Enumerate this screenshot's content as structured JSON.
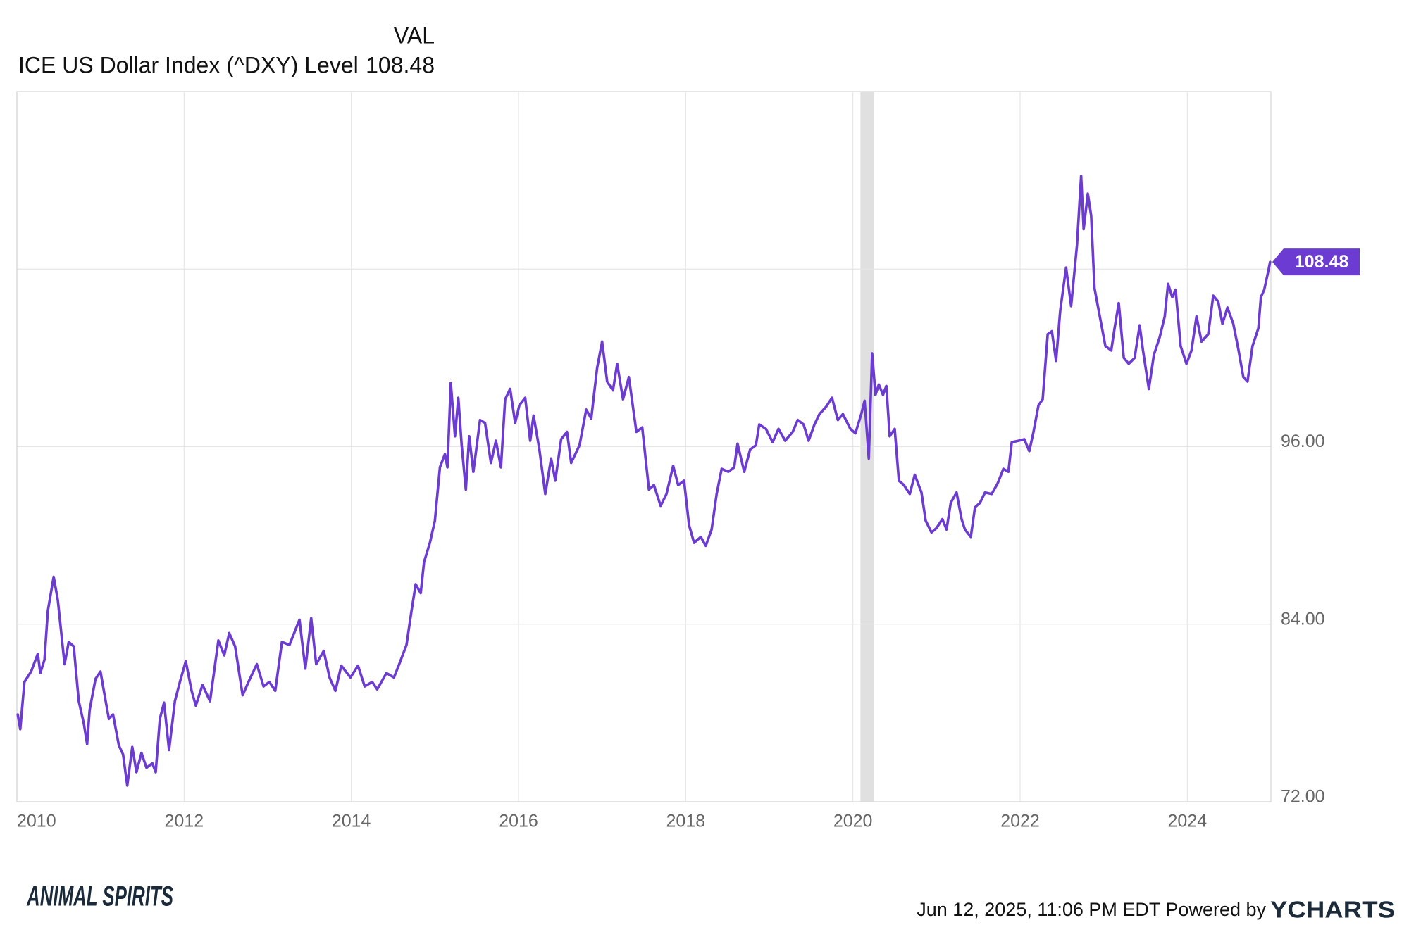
{
  "chart_data": {
    "type": "line",
    "value_header": "VAL",
    "footer": "Jun 12, 2025, 11:06 PM EDT Powered by",
    "brand": "YCHARTS",
    "watermark": "ANIMAL SPIRITS",
    "xlim": [
      2010,
      2025
    ],
    "xticks": [
      2010,
      2012,
      2014,
      2016,
      2018,
      2020,
      2022,
      2024
    ],
    "ylim": [
      72,
      120
    ],
    "yticks": [
      {
        "value": 72,
        "label": "72.00"
      },
      {
        "value": 84,
        "label": "84.00"
      },
      {
        "value": 96,
        "label": "96.00"
      }
    ],
    "ygrid": [
      72,
      84,
      96,
      108
    ],
    "grid": true,
    "recession": [
      [
        2020.09,
        2020.25
      ]
    ],
    "x": [
      2010.01,
      2010.04,
      2010.09,
      2010.17,
      2010.25,
      2010.28,
      2010.33,
      2010.37,
      2010.44,
      2010.49,
      2010.57,
      2010.62,
      2010.68,
      2010.74,
      2010.8,
      2010.84,
      2010.87,
      2010.94,
      2011.0,
      2011.04,
      2011.1,
      2011.15,
      2011.22,
      2011.27,
      2011.32,
      2011.38,
      2011.43,
      2011.49,
      2011.55,
      2011.62,
      2011.66,
      2011.71,
      2011.76,
      2011.82,
      2011.89,
      2011.95,
      2012.02,
      2012.09,
      2012.14,
      2012.22,
      2012.31,
      2012.41,
      2012.48,
      2012.54,
      2012.61,
      2012.7,
      2012.77,
      2012.87,
      2012.95,
      2013.02,
      2013.09,
      2013.17,
      2013.26,
      2013.38,
      2013.45,
      2013.52,
      2013.58,
      2013.67,
      2013.74,
      2013.81,
      2013.88,
      2013.99,
      2014.08,
      2014.16,
      2014.25,
      2014.31,
      2014.42,
      2014.51,
      2014.58,
      2014.66,
      2014.72,
      2014.77,
      2014.83,
      2014.87,
      2014.94,
      2015.0,
      2015.06,
      2015.12,
      2015.15,
      2015.19,
      2015.24,
      2015.28,
      2015.32,
      2015.37,
      2015.41,
      2015.46,
      2015.54,
      2015.6,
      2015.67,
      2015.73,
      2015.79,
      2015.84,
      2015.9,
      2015.96,
      2016.01,
      2016.08,
      2016.14,
      2016.18,
      2016.25,
      2016.32,
      2016.39,
      2016.44,
      2016.51,
      2016.58,
      2016.63,
      2016.73,
      2016.81,
      2016.87,
      2016.94,
      2017.0,
      2017.06,
      2017.13,
      2017.18,
      2017.25,
      2017.32,
      2017.41,
      2017.48,
      2017.56,
      2017.62,
      2017.7,
      2017.77,
      2017.85,
      2017.91,
      2017.98,
      2018.04,
      2018.1,
      2018.18,
      2018.24,
      2018.31,
      2018.37,
      2018.43,
      2018.51,
      2018.58,
      2018.62,
      2018.7,
      2018.77,
      2018.84,
      2018.88,
      2018.96,
      2019.04,
      2019.11,
      2019.19,
      2019.28,
      2019.34,
      2019.41,
      2019.47,
      2019.54,
      2019.6,
      2019.68,
      2019.75,
      2019.82,
      2019.88,
      2019.97,
      2020.03,
      2020.1,
      2020.14,
      2020.19,
      2020.23,
      2020.27,
      2020.31,
      2020.36,
      2020.4,
      2020.44,
      2020.5,
      2020.55,
      2020.61,
      2020.68,
      2020.74,
      2020.82,
      2020.87,
      2020.94,
      2021.0,
      2021.07,
      2021.12,
      2021.17,
      2021.24,
      2021.3,
      2021.34,
      2021.41,
      2021.46,
      2021.52,
      2021.58,
      2021.66,
      2021.73,
      2021.8,
      2021.86,
      2021.9,
      2021.98,
      2022.05,
      2022.11,
      2022.16,
      2022.22,
      2022.27,
      2022.33,
      2022.38,
      2022.43,
      2022.48,
      2022.55,
      2022.61,
      2022.68,
      2022.73,
      2022.76,
      2022.81,
      2022.85,
      2022.89,
      2022.96,
      2023.02,
      2023.09,
      2023.13,
      2023.18,
      2023.24,
      2023.3,
      2023.37,
      2023.43,
      2023.47,
      2023.54,
      2023.6,
      2023.67,
      2023.73,
      2023.77,
      2023.82,
      2023.86,
      2023.92,
      2023.99,
      2024.05,
      2024.11,
      2024.17,
      2024.25,
      2024.31,
      2024.37,
      2024.42,
      2024.48,
      2024.55,
      2024.61,
      2024.67,
      2024.72,
      2024.78,
      2024.85,
      2024.88,
      2024.92,
      2024.97,
      2024.99
    ],
    "series": [
      {
        "name": "ICE US Dollar Index (^DXY) Level",
        "color": "#6c3bd1",
        "values": [
          77.9,
          76.9,
          80.1,
          80.8,
          82.0,
          80.7,
          81.6,
          84.9,
          87.2,
          85.6,
          81.3,
          82.8,
          82.5,
          78.8,
          77.3,
          75.9,
          78.2,
          80.3,
          80.8,
          79.5,
          77.6,
          77.9,
          75.8,
          75.2,
          73.1,
          75.7,
          74.0,
          75.3,
          74.3,
          74.6,
          74.0,
          77.6,
          78.7,
          75.5,
          78.8,
          80.1,
          81.5,
          79.5,
          78.5,
          79.9,
          78.8,
          82.9,
          81.9,
          83.4,
          82.5,
          79.2,
          80.1,
          81.3,
          79.8,
          80.1,
          79.5,
          82.8,
          82.6,
          84.3,
          81.0,
          84.4,
          81.3,
          82.2,
          80.4,
          79.5,
          81.2,
          80.4,
          81.2,
          79.8,
          80.1,
          79.6,
          80.7,
          80.4,
          81.4,
          82.6,
          84.9,
          86.7,
          86.1,
          88.2,
          89.5,
          91.0,
          94.6,
          95.5,
          94.6,
          100.3,
          96.7,
          99.3,
          96.1,
          93.1,
          96.7,
          94.3,
          97.8,
          97.6,
          94.9,
          96.4,
          94.6,
          99.2,
          99.9,
          97.6,
          98.8,
          99.3,
          96.4,
          98.1,
          95.8,
          92.8,
          95.2,
          93.7,
          96.5,
          97.0,
          94.9,
          96.1,
          98.5,
          97.9,
          101.3,
          103.1,
          100.4,
          99.8,
          101.6,
          99.2,
          100.7,
          97.0,
          97.3,
          93.1,
          93.4,
          92.0,
          92.8,
          94.7,
          93.4,
          93.7,
          90.7,
          89.5,
          89.9,
          89.3,
          90.4,
          92.8,
          94.5,
          94.3,
          94.6,
          96.2,
          94.3,
          95.8,
          96.1,
          97.5,
          97.2,
          96.3,
          97.2,
          96.4,
          97.0,
          97.8,
          97.5,
          96.4,
          97.5,
          98.2,
          98.7,
          99.3,
          97.8,
          98.2,
          97.2,
          96.9,
          98.2,
          99.1,
          95.2,
          102.3,
          99.5,
          100.2,
          99.5,
          100.1,
          96.7,
          97.2,
          93.7,
          93.4,
          92.8,
          94.1,
          92.9,
          91.0,
          90.2,
          90.5,
          91.1,
          90.4,
          92.2,
          92.9,
          91.1,
          90.4,
          89.9,
          91.9,
          92.2,
          92.9,
          92.8,
          93.5,
          94.5,
          94.3,
          96.3,
          96.4,
          96.5,
          95.7,
          97.0,
          98.8,
          99.2,
          103.6,
          103.8,
          101.8,
          105.2,
          108.1,
          105.5,
          109.6,
          114.3,
          110.7,
          113.1,
          111.6,
          106.7,
          104.6,
          102.8,
          102.5,
          104.0,
          105.7,
          102.0,
          101.6,
          102.0,
          104.2,
          102.5,
          99.9,
          102.2,
          103.4,
          104.8,
          107.0,
          106.1,
          106.6,
          102.8,
          101.6,
          102.5,
          104.8,
          103.1,
          103.6,
          106.2,
          105.8,
          104.3,
          105.4,
          104.3,
          102.6,
          100.7,
          100.4,
          102.8,
          104.0,
          106.1,
          106.6,
          107.9,
          108.48
        ]
      }
    ]
  }
}
